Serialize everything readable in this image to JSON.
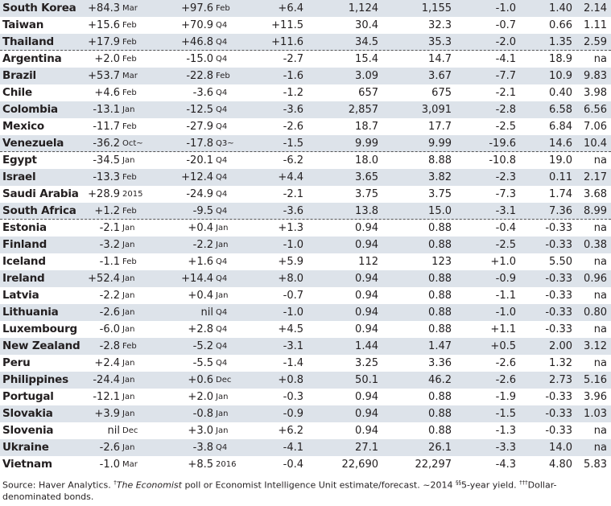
{
  "rows": [
    {
      "country": "South Korea",
      "v1": "+84.3",
      "m1": "Mar",
      "v2": "+97.6",
      "m2": "Feb",
      "c3": "+6.4",
      "c4": "1,124",
      "c5": "1,155",
      "c6": "-1.0",
      "c7": "1.40",
      "c8": "2.14",
      "sep": false
    },
    {
      "country": "Taiwan",
      "v1": "+15.6",
      "m1": "Feb",
      "v2": "+70.9",
      "m2": "Q4",
      "c3": "+11.5",
      "c4": "30.4",
      "c5": "32.3",
      "c6": "-0.7",
      "c7": "0.66",
      "c8": "1.11",
      "sep": false
    },
    {
      "country": "Thailand",
      "v1": "+17.9",
      "m1": "Feb",
      "v2": "+46.8",
      "m2": "Q4",
      "c3": "+11.6",
      "c4": "34.5",
      "c5": "35.3",
      "c6": "-2.0",
      "c7": "1.35",
      "c8": "2.59",
      "sep": true
    },
    {
      "country": "Argentina",
      "v1": "+2.0",
      "m1": "Feb",
      "v2": "-15.0",
      "m2": "Q4",
      "c3": "-2.7",
      "c4": "15.4",
      "c5": "14.7",
      "c6": "-4.1",
      "c7": "18.9",
      "c8": "na",
      "sep": false
    },
    {
      "country": "Brazil",
      "v1": "+53.7",
      "m1": "Mar",
      "v2": "-22.8",
      "m2": "Feb",
      "c3": "-1.6",
      "c4": "3.09",
      "c5": "3.67",
      "c6": "-7.7",
      "c7": "10.9",
      "c8": "9.83",
      "sep": false
    },
    {
      "country": "Chile",
      "v1": "+4.6",
      "m1": "Feb",
      "v2": "-3.6",
      "m2": "Q4",
      "c3": "-1.2",
      "c4": "657",
      "c5": "675",
      "c6": "-2.1",
      "c7": "0.40",
      "c8": "3.98",
      "sep": false
    },
    {
      "country": "Colombia",
      "v1": "-13.1",
      "m1": "Jan",
      "v2": "-12.5",
      "m2": "Q4",
      "c3": "-3.6",
      "c4": "2,857",
      "c5": "3,091",
      "c6": "-2.8",
      "c7": "6.58",
      "c8": "6.56",
      "sep": false
    },
    {
      "country": "Mexico",
      "v1": "-11.7",
      "m1": "Feb",
      "v2": "-27.9",
      "m2": "Q4",
      "c3": "-2.6",
      "c4": "18.7",
      "c5": "17.7",
      "c6": "-2.5",
      "c7": "6.84",
      "c8": "7.06",
      "sep": false
    },
    {
      "country": "Venezuela",
      "v1": "-36.2",
      "m1": "Oct~",
      "v2": "-17.8",
      "m2": "Q3~",
      "c3": "-1.5",
      "c4": "9.99",
      "c5": "9.99",
      "c6": "-19.6",
      "c7": "14.6",
      "c8": "10.4",
      "sep": true
    },
    {
      "country": "Egypt",
      "v1": "-34.5",
      "m1": "Jan",
      "v2": "-20.1",
      "m2": "Q4",
      "c3": "-6.2",
      "c4": "18.0",
      "c5": "8.88",
      "c6": "-10.8",
      "c7": "19.0",
      "c8": "na",
      "sep": false
    },
    {
      "country": "Israel",
      "v1": "-13.3",
      "m1": "Feb",
      "v2": "+12.4",
      "m2": "Q4",
      "c3": "+4.4",
      "c4": "3.65",
      "c5": "3.82",
      "c6": "-2.3",
      "c7": "0.11",
      "c8": "2.17",
      "sep": false
    },
    {
      "country": "Saudi Arabia",
      "v1": "+28.9",
      "m1": "2015",
      "v2": "-24.9",
      "m2": "Q4",
      "c3": "-2.1",
      "c4": "3.75",
      "c5": "3.75",
      "c6": "-7.3",
      "c7": "1.74",
      "c8": "3.68",
      "sep": false
    },
    {
      "country": "South Africa",
      "v1": "+1.2",
      "m1": "Feb",
      "v2": "-9.5",
      "m2": "Q4",
      "c3": "-3.6",
      "c4": "13.8",
      "c5": "15.0",
      "c6": "-3.1",
      "c7": "7.36",
      "c8": "8.99",
      "sep": true
    },
    {
      "country": "Estonia",
      "v1": "-2.1",
      "m1": "Jan",
      "v2": "+0.4",
      "m2": "Jan",
      "c3": "+1.3",
      "c4": "0.94",
      "c5": "0.88",
      "c6": "-0.4",
      "c7": "-0.33",
      "c8": "na",
      "sep": false
    },
    {
      "country": "Finland",
      "v1": "-3.2",
      "m1": "Jan",
      "v2": "-2.2",
      "m2": "Jan",
      "c3": "-1.0",
      "c4": "0.94",
      "c5": "0.88",
      "c6": "-2.5",
      "c7": "-0.33",
      "c8": "0.38",
      "sep": false
    },
    {
      "country": "Iceland",
      "v1": "-1.1",
      "m1": "Feb",
      "v2": "+1.6",
      "m2": "Q4",
      "c3": "+5.9",
      "c4": "112",
      "c5": "123",
      "c6": "+1.0",
      "c7": "5.50",
      "c8": "na",
      "sep": false
    },
    {
      "country": "Ireland",
      "v1": "+52.4",
      "m1": "Jan",
      "v2": "+14.4",
      "m2": "Q4",
      "c3": "+8.0",
      "c4": "0.94",
      "c5": "0.88",
      "c6": "-0.9",
      "c7": "-0.33",
      "c8": "0.96",
      "sep": false
    },
    {
      "country": "Latvia",
      "v1": "-2.2",
      "m1": "Jan",
      "v2": "+0.4",
      "m2": "Jan",
      "c3": "-0.7",
      "c4": "0.94",
      "c5": "0.88",
      "c6": "-1.1",
      "c7": "-0.33",
      "c8": "na",
      "sep": false
    },
    {
      "country": "Lithuania",
      "v1": "-2.6",
      "m1": "Jan",
      "v2": "nil",
      "m2": "Q4",
      "c3": "-1.0",
      "c4": "0.94",
      "c5": "0.88",
      "c6": "-1.0",
      "c7": "-0.33",
      "c8": "0.80",
      "sep": false
    },
    {
      "country": "Luxembourg",
      "v1": "-6.0",
      "m1": "Jan",
      "v2": "+2.8",
      "m2": "Q4",
      "c3": "+4.5",
      "c4": "0.94",
      "c5": "0.88",
      "c6": "+1.1",
      "c7": "-0.33",
      "c8": "na",
      "sep": false
    },
    {
      "country": "New Zealand",
      "v1": "-2.8",
      "m1": "Feb",
      "v2": "-5.2",
      "m2": "Q4",
      "c3": "-3.1",
      "c4": "1.44",
      "c5": "1.47",
      "c6": "+0.5",
      "c7": "2.00",
      "c8": "3.12",
      "sep": false
    },
    {
      "country": "Peru",
      "v1": "+2.4",
      "m1": "Jan",
      "v2": "-5.5",
      "m2": "Q4",
      "c3": "-1.4",
      "c4": "3.25",
      "c5": "3.36",
      "c6": "-2.6",
      "c7": "1.32",
      "c8": "na",
      "sep": false
    },
    {
      "country": "Philippines",
      "v1": "-24.4",
      "m1": "Jan",
      "v2": "+0.6",
      "m2": "Dec",
      "c3": "+0.8",
      "c4": "50.1",
      "c5": "46.2",
      "c6": "-2.6",
      "c7": "2.73",
      "c8": "5.16",
      "sep": false
    },
    {
      "country": "Portugal",
      "v1": "-12.1",
      "m1": "Jan",
      "v2": "+2.0",
      "m2": "Jan",
      "c3": "-0.3",
      "c4": "0.94",
      "c5": "0.88",
      "c6": "-1.9",
      "c7": "-0.33",
      "c8": "3.96",
      "sep": false
    },
    {
      "country": "Slovakia",
      "v1": "+3.9",
      "m1": "Jan",
      "v2": "-0.8",
      "m2": "Jan",
      "c3": "-0.9",
      "c4": "0.94",
      "c5": "0.88",
      "c6": "-1.5",
      "c7": "-0.33",
      "c8": "1.03",
      "sep": false
    },
    {
      "country": "Slovenia",
      "v1": "nil",
      "m1": "Dec",
      "v2": "+3.0",
      "m2": "Jan",
      "c3": "+6.2",
      "c4": "0.94",
      "c5": "0.88",
      "c6": "-1.3",
      "c7": "-0.33",
      "c8": "na",
      "sep": false
    },
    {
      "country": "Ukraine",
      "v1": "-2.6",
      "m1": "Jan",
      "v2": "-3.8",
      "m2": "Q4",
      "c3": "-4.1",
      "c4": "27.1",
      "c5": "26.1",
      "c6": "-3.3",
      "c7": "14.0",
      "c8": "na",
      "sep": false
    },
    {
      "country": "Vietnam",
      "v1": "-1.0",
      "m1": "Mar",
      "v2": "+8.5",
      "m2": "2016",
      "c3": "-0.4",
      "c4": "22,690",
      "c5": "22,297",
      "c6": "-4.3",
      "c7": "4.80",
      "c8": "5.83",
      "sep": false
    }
  ],
  "footnote": {
    "source": "Source: Haver Analytics. ",
    "dag1": "†",
    "pub": "The Economist",
    "t1": " poll or Economist Intelligence Unit estimate/forecast. ~2014 ",
    "sec": "§§",
    "t2": "5-year yield. ",
    "dag3": "†††",
    "t3": "Dollar-denominated bonds."
  },
  "colors": {
    "band": "#dde3ea",
    "text": "#231f20",
    "rule": "#555555"
  }
}
